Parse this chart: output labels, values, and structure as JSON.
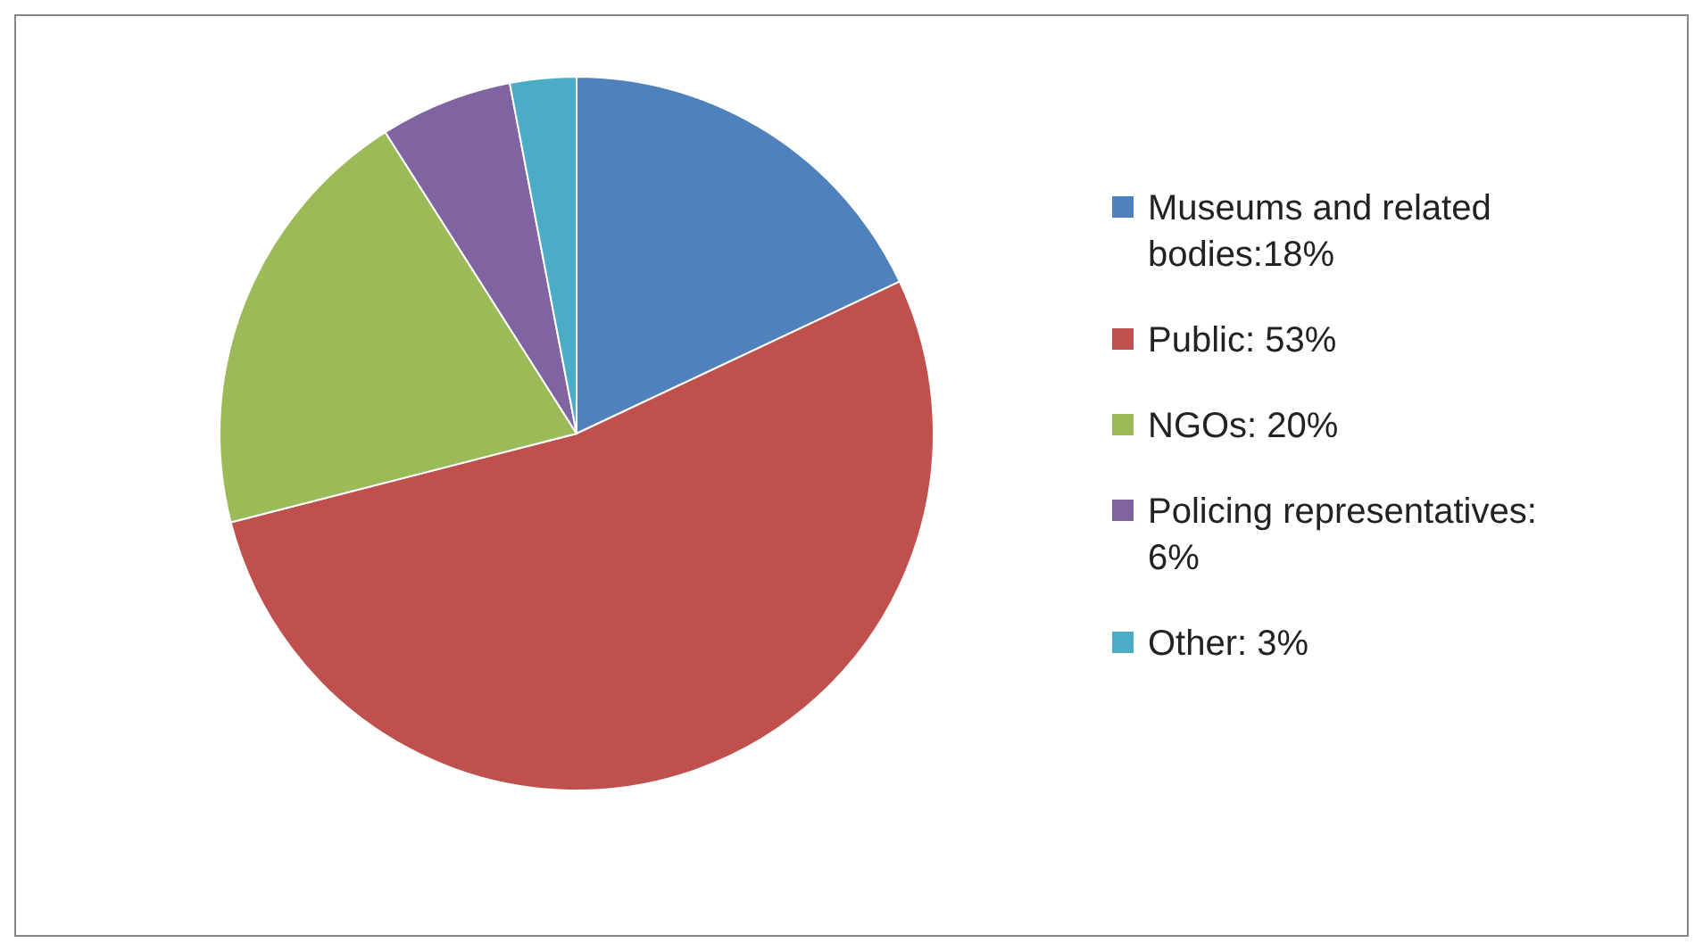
{
  "chart_data": {
    "type": "pie",
    "categories": [
      "Museums and related bodies:18%",
      "Public: 53%",
      "NGOs: 20%",
      "Policing representatives: 6%",
      "Other: 3%"
    ],
    "values": [
      18,
      53,
      20,
      6,
      3
    ],
    "colors": [
      "#4f81bd",
      "#c0504d",
      "#9bbb59",
      "#8064a2",
      "#4bacc6"
    ],
    "legend": "right"
  }
}
